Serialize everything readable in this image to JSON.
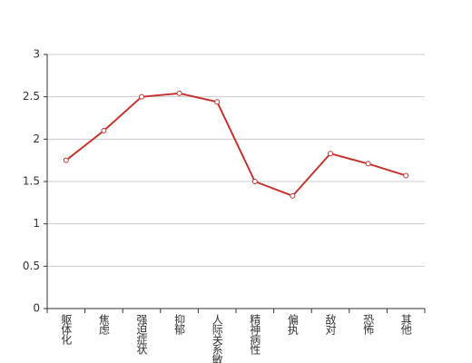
{
  "chart_data": {
    "type": "line",
    "categories": [
      "躯体化",
      "焦虑",
      "强迫症状",
      "抑郁",
      "人际关系敏感",
      "精神病性",
      "偏执",
      "敌对",
      "恐怖",
      "其他"
    ],
    "series": [
      {
        "color": "#c23531",
        "values": [
          1.75,
          2.1,
          2.5,
          2.54,
          2.44,
          1.5,
          1.33,
          1.83,
          1.71,
          1.57
        ]
      }
    ],
    "ylim": [
      0,
      3
    ],
    "yticks": [
      0,
      0.5,
      1,
      1.5,
      2,
      2.5,
      3
    ],
    "grid": true
  }
}
